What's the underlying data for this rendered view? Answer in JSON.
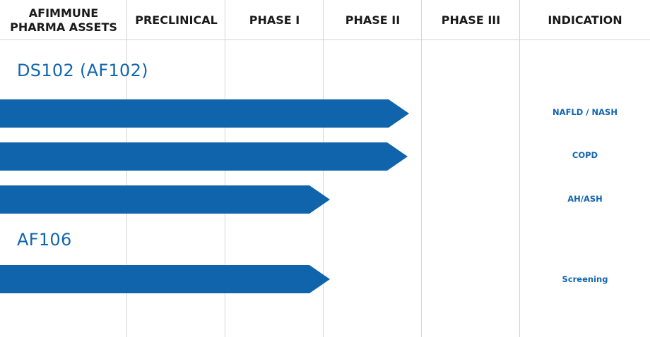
{
  "header": {
    "col0": "AFIMMUNE\nPHARMA ASSETS",
    "col0_line1": "AFIMMUNE",
    "col0_line2": "PHARMA ASSETS",
    "col1": "PRECLINICAL",
    "col2": "PHASE I",
    "col3": "PHASE II",
    "col4": "PHASE III",
    "col5": "INDICATION"
  },
  "assets": [
    {
      "name": "DS102  (AF102)"
    },
    {
      "name": "AF106"
    }
  ],
  "programs": [
    {
      "asset": "DS102  (AF102)",
      "indication": "NAFLD / NASH",
      "stage": "Phase II"
    },
    {
      "asset": "DS102  (AF102)",
      "indication": "COPD",
      "stage": "Phase II"
    },
    {
      "asset": "DS102  (AF102)",
      "indication": "AH/ASH",
      "stage": "Phase I"
    },
    {
      "asset": "AF106",
      "indication": "Screening",
      "stage": "Phase I"
    }
  ],
  "colors": {
    "bar": "#0f64ab",
    "text_accent": "#1266b0",
    "grid": "#d4d4d4"
  }
}
